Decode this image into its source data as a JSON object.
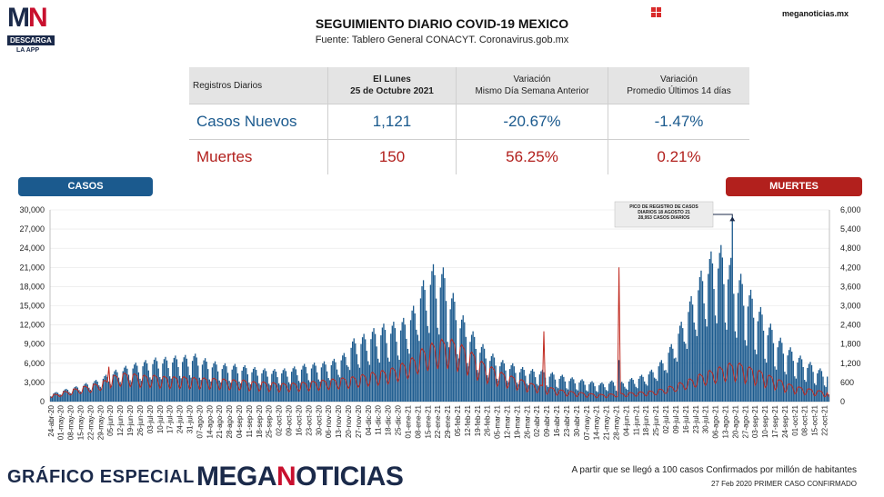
{
  "logo": {
    "mark_left": "M",
    "mark_right": "N",
    "line1": "DESCARGA",
    "line2": "LA APP"
  },
  "header": {
    "title": "SEGUIMIENTO DIARIO COVID-19 MEXICO",
    "subtitle": "Fuente: Tablero General CONACYT. Coronavirus.gob.mx",
    "site": "meganoticias.mx"
  },
  "table": {
    "col0": "Registros Diarios",
    "col1_l1": "El Lunes",
    "col1_l2": "25 de Octubre 2021",
    "col2_l1": "Variación",
    "col2_l2": "Mismo Día Semana Anterior",
    "col3_l1": "Variación",
    "col3_l2": "Promedio Últimos 14 días",
    "rows": [
      {
        "label": "Casos Nuevos",
        "value": "1,121",
        "var_week": "-20.67%",
        "var_14": "-1.47%"
      },
      {
        "label": "Muertes",
        "value": "150",
        "var_week": "56.25%",
        "var_14": "0.21%"
      }
    ]
  },
  "labels": {
    "casos": "CASOS",
    "muertes": "MUERTES"
  },
  "annotation": {
    "l1": "PICO DE REGISTRO DE CASOS",
    "l2": "DIARIOS 18 AGOSTO 21",
    "l3": "28,953 CASOS DIARIOS"
  },
  "footer": {
    "left": "GRÁFICO ESPECIAL",
    "brand_a": "MEGA",
    "brand_b": "N",
    "brand_c": "OTICIAS",
    "note1": "A partir que se llegó a 100 casos Confirmados por millón de habitantes",
    "note2": "27 Feb 2020 PRIMER CASO CONFIRMADO"
  },
  "colors": {
    "casos": "#1b5a8e",
    "muertes": "#c0281e",
    "brand": "#1b2a4a",
    "accent": "#c8102e"
  },
  "chart_data": {
    "type": "bar",
    "x_start": "2020-04-24",
    "x_end": "2021-10-25",
    "left_axis": {
      "name": "CASOS",
      "ylim": [
        0,
        30000
      ],
      "ticks": [
        "30,000",
        "27,000",
        "24,000",
        "21,000",
        "18,000",
        "15,000",
        "12,000",
        "9,000",
        "6,000",
        "3,000",
        "0"
      ]
    },
    "right_axis": {
      "name": "MUERTES",
      "ylim": [
        0,
        6000
      ],
      "ticks": [
        "6,000",
        "5,400",
        "4,800",
        "4,200",
        "3,600",
        "3,000",
        "2,400",
        "1,800",
        "1,200",
        "600",
        "0"
      ]
    },
    "x_tick_labels": [
      "24-abr-20",
      "01-may-20",
      "08-may-20",
      "15-may-20",
      "22-may-20",
      "29-may-20",
      "05-jun-20",
      "12-jun-20",
      "19-jun-20",
      "26-jun-20",
      "03-jul-20",
      "10-jul-20",
      "17-jul-20",
      "24-jul-20",
      "31-jul-20",
      "07-ago-20",
      "14-ago-20",
      "21-ago-20",
      "28-ago-20",
      "04-sep-20",
      "11-sep-20",
      "18-sep-20",
      "25-sep-20",
      "02-oct-20",
      "09-oct-20",
      "16-oct-20",
      "23-oct-20",
      "30-oct-20",
      "06-nov-20",
      "13-nov-20",
      "20-nov-20",
      "27-nov-20",
      "04-dic-20",
      "11-dic-20",
      "18-dic-20",
      "25-dic-20",
      "01-ene-21",
      "08-ene-21",
      "15-ene-21",
      "22-ene-21",
      "29-ene-21",
      "05-feb-21",
      "12-feb-21",
      "19-feb-21",
      "26-feb-21",
      "05-mar-21",
      "12-mar-21",
      "19-mar-21",
      "26-mar-21",
      "02-abr-21",
      "09-abr-21",
      "16-abr-21",
      "23-abr-21",
      "30-abr-21",
      "07-may-21",
      "14-may-21",
      "21-may-21",
      "28-may-21",
      "04-jun-21",
      "11-jun-21",
      "18-jun-21",
      "25-jun-21",
      "02-jul-21",
      "09-jul-21",
      "16-jul-21",
      "23-jul-21",
      "30-jul-21",
      "06-ago-21",
      "13-ago-21",
      "20-ago-21",
      "27-ago-21",
      "03-sep-21",
      "10-sep-21",
      "17-sep-21",
      "24-sep-21",
      "01-oct-21",
      "08-oct-21",
      "15-oct-21",
      "22-oct-21"
    ],
    "casos_weekly_peak": [
      1500,
      2000,
      2400,
      2900,
      3400,
      4200,
      5000,
      5600,
      6100,
      6500,
      6900,
      7000,
      7200,
      7300,
      7500,
      6800,
      6300,
      6000,
      5900,
      5700,
      5400,
      5200,
      5100,
      5200,
      5500,
      5900,
      6100,
      6300,
      6700,
      7600,
      9900,
      10600,
      11500,
      12200,
      12500,
      13100,
      15000,
      19000,
      21500,
      21000,
      17000,
      13500,
      11000,
      9000,
      7500,
      6500,
      6000,
      5400,
      5100,
      5000,
      4600,
      4200,
      3800,
      3500,
      3200,
      3000,
      3300,
      3100,
      3700,
      4200,
      5000,
      6500,
      9000,
      12500,
      16500,
      20500,
      23500,
      24500,
      22500,
      20000,
      17500,
      14800,
      12200,
      10000,
      8500,
      7200,
      6200,
      5200,
      4600
    ],
    "muertes_weekly": [
      200,
      280,
      350,
      420,
      480,
      580,
      720,
      780,
      760,
      720,
      720,
      690,
      680,
      680,
      660,
      650,
      640,
      620,
      600,
      590,
      550,
      540,
      520,
      500,
      510,
      530,
      560,
      590,
      620,
      650,
      680,
      740,
      800,
      850,
      920,
      1050,
      1200,
      1450,
      1600,
      1700,
      1700,
      1550,
      1350,
      1100,
      950,
      800,
      700,
      600,
      500,
      450,
      380,
      320,
      280,
      250,
      220,
      200,
      210,
      230,
      250,
      270,
      290,
      340,
      420,
      520,
      620,
      750,
      850,
      950,
      1050,
      1050,
      950,
      850,
      720,
      600,
      480,
      400,
      350,
      300,
      250
    ],
    "muertes_spikes": [
      {
        "date": "2020-06-04",
        "value": 1092
      },
      {
        "date": "2021-04-07",
        "value": 2200
      },
      {
        "date": "2021-05-30",
        "value": 4200
      }
    ],
    "casos_spikes": [
      {
        "date": "2021-05-30",
        "value": 6500
      }
    ],
    "peak_casos": {
      "date": "2021-08-18",
      "value": 28953
    }
  }
}
